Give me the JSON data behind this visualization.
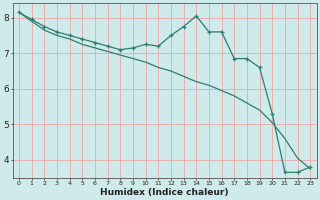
{
  "xlabel": "Humidex (Indice chaleur)",
  "line1_x": [
    0,
    1,
    2,
    3,
    4,
    5,
    6,
    7,
    8,
    9,
    10,
    11,
    12,
    13,
    14,
    15,
    16,
    17,
    18,
    19,
    20,
    21,
    22,
    23
  ],
  "line1_y": [
    8.15,
    7.95,
    7.75,
    7.6,
    7.5,
    7.4,
    7.3,
    7.2,
    7.1,
    7.15,
    7.25,
    7.2,
    7.5,
    7.75,
    8.05,
    7.6,
    7.6,
    6.85,
    6.85,
    6.6,
    5.3,
    3.65,
    3.65,
    3.8
  ],
  "line2_x": [
    0,
    1,
    2,
    3,
    4,
    5,
    6,
    7,
    8,
    9,
    10,
    11,
    12,
    13,
    14,
    15,
    16,
    17,
    18,
    19,
    20,
    21,
    22,
    23
  ],
  "line2_y": [
    8.15,
    7.9,
    7.65,
    7.5,
    7.4,
    7.25,
    7.15,
    7.05,
    6.95,
    6.85,
    6.75,
    6.6,
    6.5,
    6.35,
    6.2,
    6.1,
    5.95,
    5.8,
    5.6,
    5.4,
    5.05,
    4.6,
    4.05,
    3.75
  ],
  "line_color": "#2e7d6e",
  "bg_color": "#ceeaea",
  "grid_color": "#e8b0b0",
  "ylim": [
    3.5,
    8.4
  ],
  "xlim": [
    -0.5,
    23.5
  ],
  "yticks": [
    4,
    5,
    6,
    7,
    8
  ],
  "xticks": [
    0,
    1,
    2,
    3,
    4,
    5,
    6,
    7,
    8,
    9,
    10,
    11,
    12,
    13,
    14,
    15,
    16,
    17,
    18,
    19,
    20,
    21,
    22,
    23
  ]
}
